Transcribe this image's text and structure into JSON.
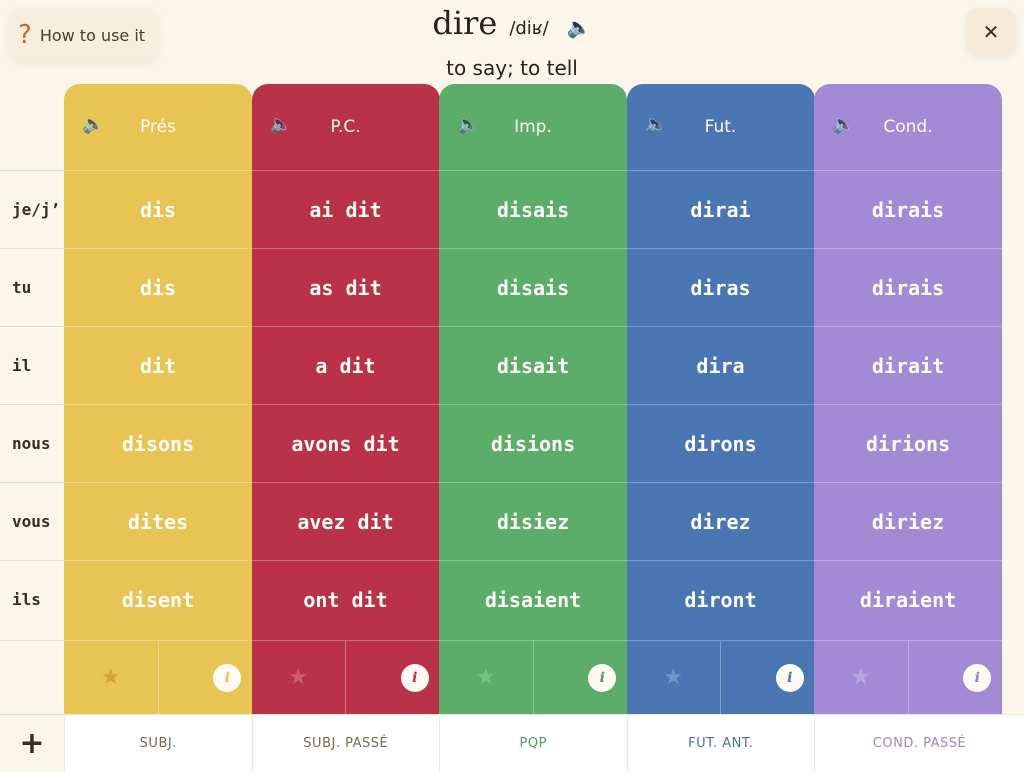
{
  "help": {
    "icon": "?",
    "label": "How to use it"
  },
  "close": {
    "icon": "✕"
  },
  "verb": {
    "word": "dire",
    "ipa": "/diʁ/",
    "speaker": "🔈",
    "meaning": "to say; to tell"
  },
  "pronouns": [
    "je/j’",
    "tu",
    "il",
    "nous",
    "vous",
    "ils"
  ],
  "tenses": [
    {
      "name": "Prés",
      "color": "#e8c455",
      "icon_color": "#c98a16",
      "forms": [
        "dis",
        "dis",
        "dit",
        "disons",
        "dites",
        "disent"
      ],
      "info_color": "#e5c25a"
    },
    {
      "name": "P.C.",
      "color": "#b93247",
      "icon_color": "#d8808a",
      "forms": [
        "ai dit",
        "as dit",
        "a dit",
        "avons dit",
        "avez dit",
        "ont dit"
      ],
      "info_color": "#b93247"
    },
    {
      "name": "Imp.",
      "color": "#5cac6a",
      "icon_color": "#8ed199",
      "forms": [
        "disais",
        "disais",
        "disait",
        "disions",
        "disiez",
        "disaient"
      ],
      "info_color": "#4d9a5a"
    },
    {
      "name": "Fut.",
      "color": "#4a76b3",
      "icon_color": "#8fb0dd",
      "forms": [
        "dirai",
        "diras",
        "dira",
        "dirons",
        "direz",
        "diront"
      ],
      "info_color": "#4a76b3"
    },
    {
      "name": "Cond.",
      "color": "#a48ad4",
      "icon_color": "#cdbdef",
      "forms": [
        "dirais",
        "dirais",
        "dirait",
        "dirions",
        "diriez",
        "diraient"
      ],
      "info_color": "#9a80cc"
    }
  ],
  "bottom": {
    "add": "+",
    "tabs": [
      {
        "label": "SUBJ.",
        "color": "#7a6654"
      },
      {
        "label": "SUBJ. PASSÉ",
        "color": "#7a6654"
      },
      {
        "label": "PQP",
        "color": "#4f9e5c"
      },
      {
        "label": "FUT. ANT.",
        "color": "#4a6fa8"
      },
      {
        "label": "COND. PASSÉ",
        "color": "#9c86cc"
      }
    ]
  },
  "icons": {
    "speaker": "🔈",
    "star": "★",
    "info": "i"
  }
}
